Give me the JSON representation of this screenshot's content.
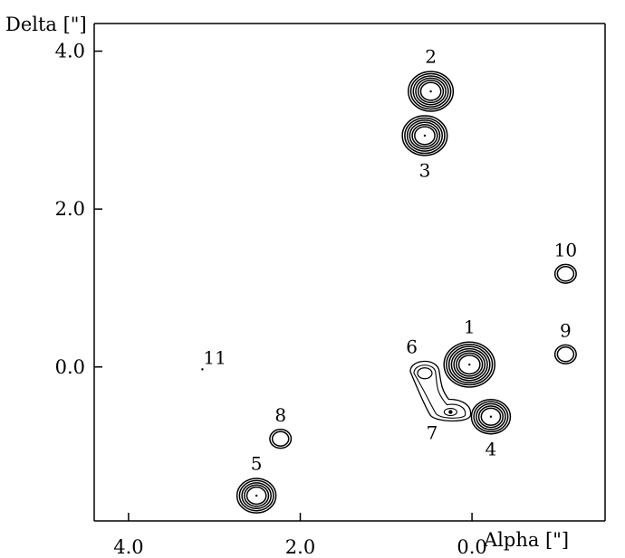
{
  "chart_data": {
    "type": "contour",
    "xlabel": "Alpha [\"]",
    "ylabel": "Delta [\"]",
    "x_reversed": true,
    "xlim": [
      4.4,
      -1.55
    ],
    "ylim": [
      -1.95,
      4.35
    ],
    "x_ticks": [
      {
        "value": 4.0,
        "label": "4.0"
      },
      {
        "value": 2.0,
        "label": "2.0"
      },
      {
        "value": 0.0,
        "label": "0.0"
      }
    ],
    "y_ticks": [
      {
        "value": 4.0,
        "label": "4.0"
      },
      {
        "value": 2.0,
        "label": "2.0"
      },
      {
        "value": 0.0,
        "label": "0.0"
      }
    ],
    "sources": [
      {
        "id": "1",
        "label": "1",
        "alpha": 0.03,
        "delta": 0.03,
        "strength": 7,
        "label_position": "above"
      },
      {
        "id": "2",
        "label": "2",
        "alpha": 0.48,
        "delta": 3.49,
        "strength": 6,
        "label_position": "above"
      },
      {
        "id": "3",
        "label": "3",
        "alpha": 0.55,
        "delta": 2.93,
        "strength": 6,
        "label_position": "below"
      },
      {
        "id": "4",
        "label": "4",
        "alpha": -0.22,
        "delta": -0.63,
        "strength": 5,
        "label_position": "below"
      },
      {
        "id": "5",
        "label": "5",
        "alpha": 2.51,
        "delta": -1.63,
        "strength": 5,
        "label_position": "above"
      },
      {
        "id": "6",
        "label": "6",
        "alpha": 0.55,
        "delta": -0.08,
        "strength": 3,
        "label_position": "above-left"
      },
      {
        "id": "7",
        "label": "7",
        "alpha": 0.25,
        "delta": -0.57,
        "strength": 3,
        "label_position": "below-left"
      },
      {
        "id": "8",
        "label": "8",
        "alpha": 2.23,
        "delta": -0.91,
        "strength": 2,
        "label_position": "above"
      },
      {
        "id": "9",
        "label": "9",
        "alpha": -1.09,
        "delta": 0.16,
        "strength": 2,
        "label_position": "above"
      },
      {
        "id": "10",
        "label": "10",
        "alpha": -1.09,
        "delta": 1.18,
        "strength": 2,
        "label_position": "above"
      },
      {
        "id": "11",
        "label": "11",
        "alpha": 3.14,
        "delta": -0.03,
        "strength": 0,
        "label_position": "above-right"
      }
    ]
  }
}
